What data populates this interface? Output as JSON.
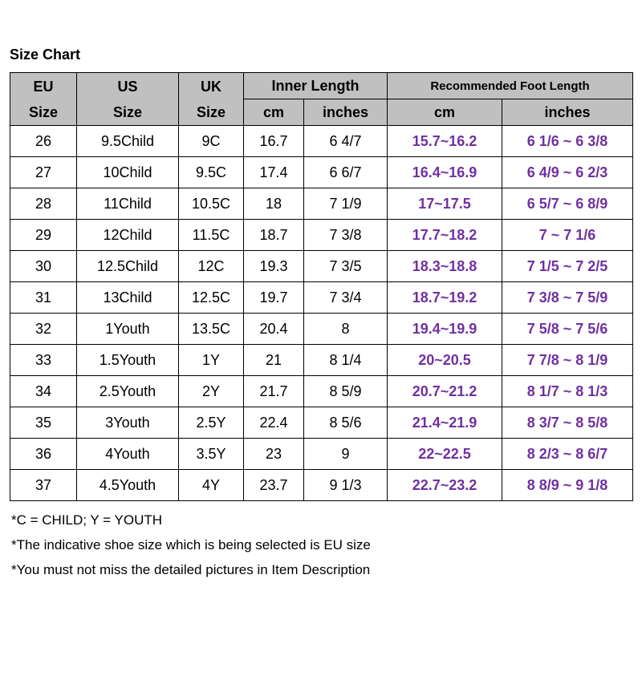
{
  "page": {
    "title": "Size Chart"
  },
  "colors": {
    "background": "#ffffff",
    "text": "#000000",
    "border": "#000000",
    "header_bg": "#c0c0c0",
    "foot_length_text": "#7030a0"
  },
  "chart_data": {
    "type": "table",
    "title": "Size Chart",
    "header": {
      "eu": "EU\nSize",
      "us": "US\nSize",
      "uk": "UK\nSize",
      "inner_length": "Inner Length",
      "recommended": "Recommended Foot Length",
      "sub": [
        "cm",
        "inches",
        "cm",
        "inches"
      ]
    },
    "rows": [
      [
        "26",
        "9.5Child",
        "9C",
        "16.7",
        "6 4/7",
        "15.7~16.2",
        "6 1/6 ~ 6 3/8"
      ],
      [
        "27",
        "10Child",
        "9.5C",
        "17.4",
        "6 6/7",
        "16.4~16.9",
        "6 4/9 ~ 6 2/3"
      ],
      [
        "28",
        "11Child",
        "10.5C",
        "18",
        "7 1/9",
        "17~17.5",
        "6 5/7 ~ 6 8/9"
      ],
      [
        "29",
        "12Child",
        "11.5C",
        "18.7",
        "7 3/8",
        "17.7~18.2",
        "7 ~ 7 1/6"
      ],
      [
        "30",
        "12.5Child",
        "12C",
        "19.3",
        "7 3/5",
        "18.3~18.8",
        "7 1/5 ~ 7 2/5"
      ],
      [
        "31",
        "13Child",
        "12.5C",
        "19.7",
        "7 3/4",
        "18.7~19.2",
        "7 3/8 ~ 7 5/9"
      ],
      [
        "32",
        "1Youth",
        "13.5C",
        "20.4",
        "8",
        "19.4~19.9",
        "7 5/8 ~ 7 5/6"
      ],
      [
        "33",
        "1.5Youth",
        "1Y",
        "21",
        "8 1/4",
        "20~20.5",
        "7 7/8 ~ 8 1/9"
      ],
      [
        "34",
        "2.5Youth",
        "2Y",
        "21.7",
        "8 5/9",
        "20.7~21.2",
        "8 1/7 ~ 8 1/3"
      ],
      [
        "35",
        "3Youth",
        "2.5Y",
        "22.4",
        "8 5/6",
        "21.4~21.9",
        "8 3/7 ~ 8 5/8"
      ],
      [
        "36",
        "4Youth",
        "3.5Y",
        "23",
        "9",
        "22~22.5",
        "8 2/3 ~ 8 6/7"
      ],
      [
        "37",
        "4.5Youth",
        "4Y",
        "23.7",
        "9 1/3",
        "22.7~23.2",
        "8 8/9 ~ 9 1/8"
      ]
    ]
  },
  "notes": [
    "*C = CHILD; Y = YOUTH",
    "*The indicative shoe size which is being selected is EU size",
    "*You must not miss the detailed pictures in Item Description"
  ]
}
